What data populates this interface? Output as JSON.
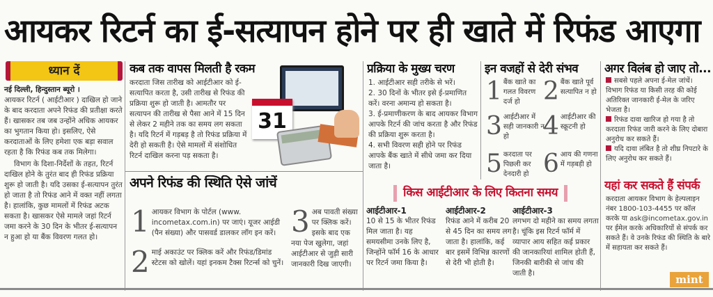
{
  "headline": "आयकर रिटर्न का ई-सत्यापन होने पर ही खाते में रिफंड आएगा",
  "attention": {
    "label": "ध्यान दें",
    "dateline": "नई दिल्ली, हिन्दुस्तान ब्यूरो ।",
    "para1": "आयकर रिटर्न ( आईटीआर ) दाखिल हो जाने के बाद करदाता अपने रिफंड की प्रतीक्षा करते हैं। खासकर तब जब उन्होंने अधिक आयकर का भुगतान किया हो। इसलिए, ऐसे करदाताओं के लिए हमेशा एक बड़ा सवाल रहता है कि रिफंड कब तक मिलेगा।",
    "para2": "विभाग के दिशा-निर्देशों के तहत, रिटर्न दाखिल होने के तुरंत बाद ही रिफंड प्रक्रिया शुरू हो जाती है। यदि उसका ई-सत्यापन तुरंत हो जाता है तो रिफंड आने में वक्त नहीं लगता है। हालांकि, कुछ मामलों में रिफंड अटक सकता है। खासकर ऐसे मामले जहां रिटर्न जमा करने के 30 दिन के भीतर ई-सत्यापन न हुआ हो या बैंक विवरण गलत हो।"
  },
  "when": {
    "heading": "कब तक वापस मिलती है रकम",
    "text": "करदाता जिस तारीख को आईटीआर को ई-सत्यापित करता है, उसी तारीख से रिफंड की प्रक्रिया शुरू हो जाती है। आमतौर पर सत्यापन की तारीख से पैसा आने में 15 दिन से लेकर 2 महीने तक का समय लग सकता है। यदि रिटर्न में गड़बड़ है तो रिफंड प्रक्रिया में देरी हो सकती है। ऐसे मामलों में संशोधित रिटर्न दाखिल करना पड़ सकता है।",
    "calendar_day": "31"
  },
  "status": {
    "heading": "अपने रिफंड की स्थिति ऐसे जांचें",
    "steps": [
      {
        "n": "1",
        "text": "आयकर विभाग के पोर्टल (www. incometax.com.in) पर जाएं। यूजर आईडी (पैन संख्या) और पासवर्ड डालकर लॉग इन करें।"
      },
      {
        "n": "2",
        "text": "माई अकाउंट पर क्लिक करें और रिफंड/डिमांड स्टेटस को खोलें। यहां इनकम टैक्स रिटर्न्स को चुनें।"
      },
      {
        "n": "3",
        "text": "अब पावती संख्या पर क्लिक करें। इसके बाद एक नया पेज खुलेगा, जहां आईटीआर से जुड़ी सारी जानकारी दिख जाएगी।"
      }
    ]
  },
  "process": {
    "heading": "प्रक्रिया के मुख्य चरण",
    "steps": [
      "1. आईटीआर सही तरीके से भरें।",
      "2. 30 दिनों के भीतर इसे ई-प्रमाणित करें। वरना अमान्य हो सकता है।",
      "3. ई-प्रमाणीकरण के बाद आयकर विभाग आपके रिटर्न की जांच करता है और रिफंड की प्रक्रिया शुरू करता है।",
      "4. सभी विवरण सही होने पर रिफंड आपके बैंक खाते में सीधे जमा कर दिया जाता है।"
    ]
  },
  "delays": {
    "heading": "इन वजहों से देरी संभव",
    "items": [
      {
        "n": "1",
        "text": "बैंक खाते का गलत विवरण दर्ज हो"
      },
      {
        "n": "2",
        "text": "बैंक खाते पूर्व सत्यापित न हो"
      },
      {
        "n": "3",
        "text": "आईटीआर में सही जानकारी न हो"
      },
      {
        "n": "4",
        "text": "आईटीआर की स्क्रूटनी हो"
      },
      {
        "n": "5",
        "text": "करदाता पर पिछली कर देनदारी हो"
      },
      {
        "n": "6",
        "text": "आय की गणना में गड़बड़ी हो"
      }
    ]
  },
  "itr_time": {
    "heading": "किस आईटीआर के लिए कितना समय",
    "cols": [
      {
        "title": "आईटीआर-1",
        "text": "10 से 15 के भीतर रिफंड मिल जाता है। यह समयसीमा उनके लिए है, जिन्होंने फॉर्म 16 के आधार पर रिटर्न जमा किया है।"
      },
      {
        "title": "आईटीआर-2",
        "text": "रिफंड आने में करीब 20 से 45 दिन का समय लग जाता है। हालांकि, कई बार इसमें विभिन्न कारणों से देरी भी होती है।"
      },
      {
        "title": "आईटीआर-3",
        "text": "लगभग दो महीने का समय लगता है। चूंकि इस रिटर्न फॉर्म में व्यापार आय सहित कई प्रकार की जानकारियां शामिल होती हैं, जिनकी बारीकी से जांच की जाती है।"
      }
    ]
  },
  "if_delay": {
    "heading": "अगर विलंब हो जाए तो...",
    "bullets": [
      "सबसे पहले अपना ई-मेल जांचें। विभाग रिफंड या किसी तरह की कोई अतिरिक्त जानकारी ई-मेल के जरिए भेजता है।",
      "रिफंड दावा खारिज हो गया है तो करदाता रिफंड जारी करने के लिए दोबारा अनुरोध कर सकते हैं।",
      "यदि दावा लंबित है तो शीघ्र निपटारे के लिए अनुरोध कर सकते हैं।"
    ]
  },
  "contact": {
    "heading": "यहां कर सकते हैं संपर्क",
    "text": "करदाता आयकर विभाग के हेल्पलाइन नंबर 1800-103-4455 पर कॉल करके या ask@incometax.gov.in पर ईमेल करके अधिकारियों से संपर्क कर सकते हैं। वे उनके रिफंड की स्थिति के बारे में सहायता कर सकते हैं।"
  },
  "logo": "mint",
  "colors": {
    "accent_red": "#c8102e",
    "yellow": "#f3c515",
    "logo": "#e9a33a"
  }
}
